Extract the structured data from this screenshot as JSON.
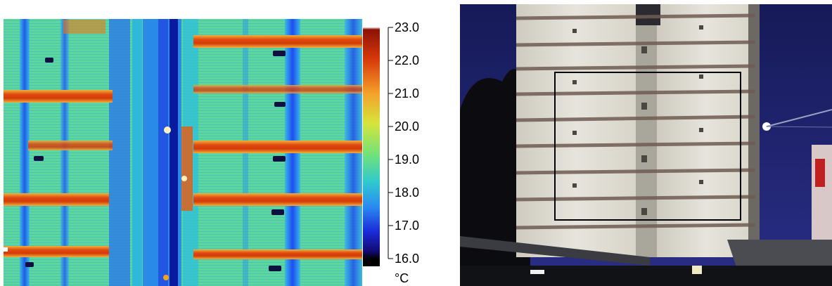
{
  "thermal": {
    "scale": {
      "ticks": [
        "23.0",
        "22.0",
        "21.0",
        "20.0",
        "19.0",
        "18.0",
        "17.0",
        "16.0"
      ],
      "unit": "°C",
      "min": 16.0,
      "max": 23.0
    },
    "palette": [
      "#000000",
      "#1a0a8a",
      "#1b3cf0",
      "#2aa0f0",
      "#2fd6c8",
      "#7ee870",
      "#d8e83a",
      "#f6b028",
      "#e45a10",
      "#a81606",
      "#ffffff"
    ]
  },
  "photo": {
    "subject": "multi-storey building at dusk",
    "has_inspection_frame": true
  }
}
